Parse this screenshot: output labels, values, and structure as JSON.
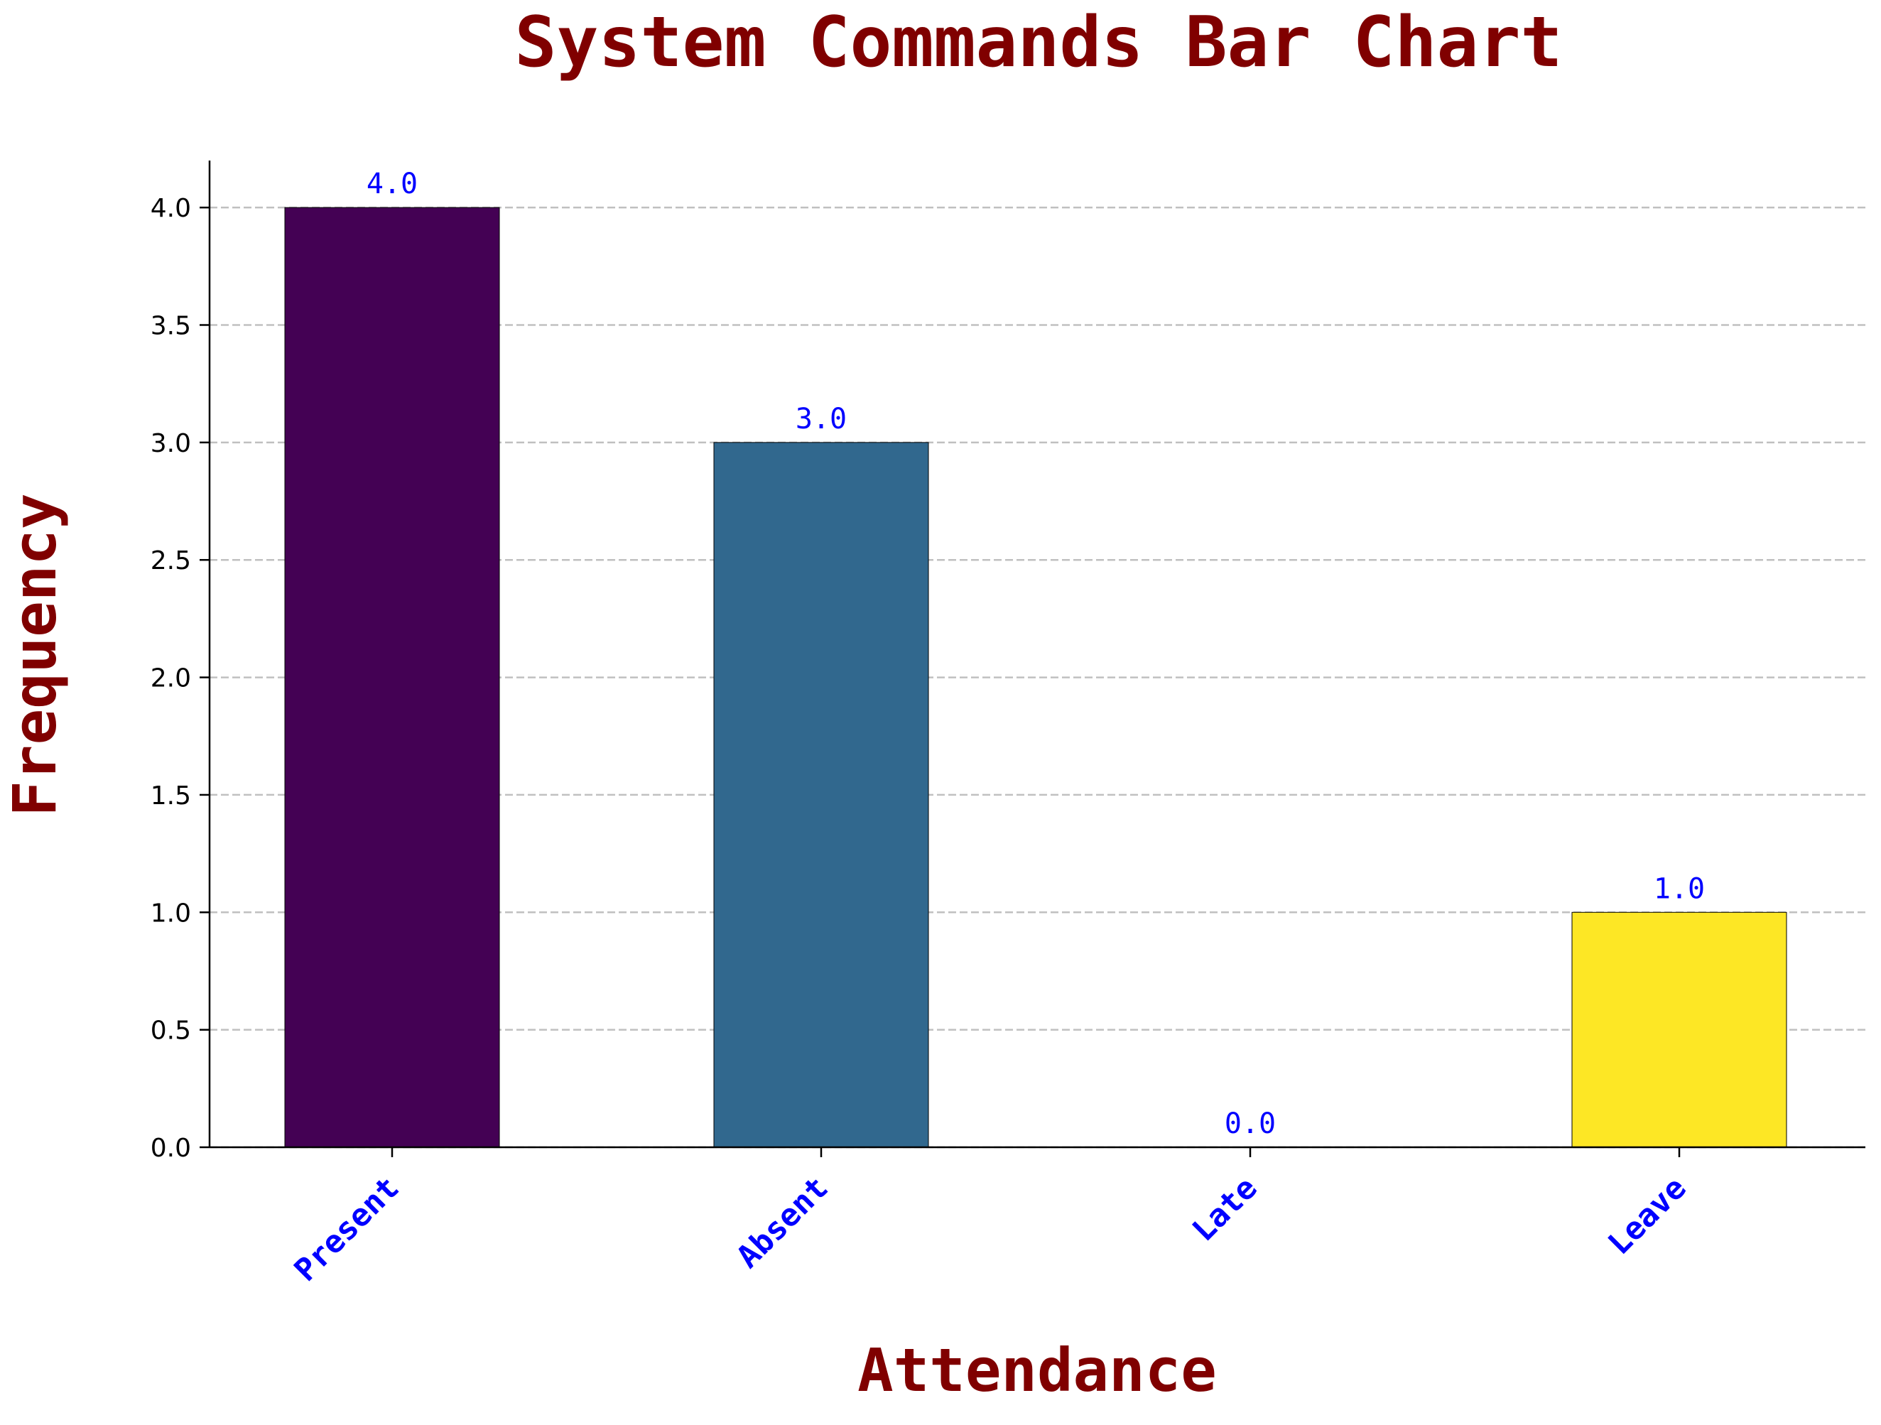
{
  "chart_data": {
    "type": "bar",
    "title": "System Commands Bar Chart",
    "xlabel": "Attendance",
    "ylabel": "Frequency",
    "categories": [
      "Present",
      "Absent",
      "Late",
      "Leave"
    ],
    "values": [
      4.0,
      3.0,
      0.0,
      1.0
    ],
    "value_labels": [
      "4.0",
      "3.0",
      "0.0",
      "1.0"
    ],
    "bar_colors": [
      "#440154",
      "#31688e",
      "#35b779",
      "#fde725"
    ],
    "ylim": [
      0,
      4.2
    ],
    "yticks": [
      0.0,
      0.5,
      1.0,
      1.5,
      2.0,
      2.5,
      3.0,
      3.5,
      4.0
    ],
    "ytick_labels": [
      "0.0",
      "0.5",
      "1.0",
      "1.5",
      "2.0",
      "2.5",
      "3.0",
      "3.5",
      "4.0"
    ],
    "grid": "y dashed",
    "colors": {
      "title": "#800000",
      "axis_label": "#800000",
      "category_label": "#0000ff",
      "value_label": "#0000ff",
      "grid": "#c0c0c0"
    }
  }
}
